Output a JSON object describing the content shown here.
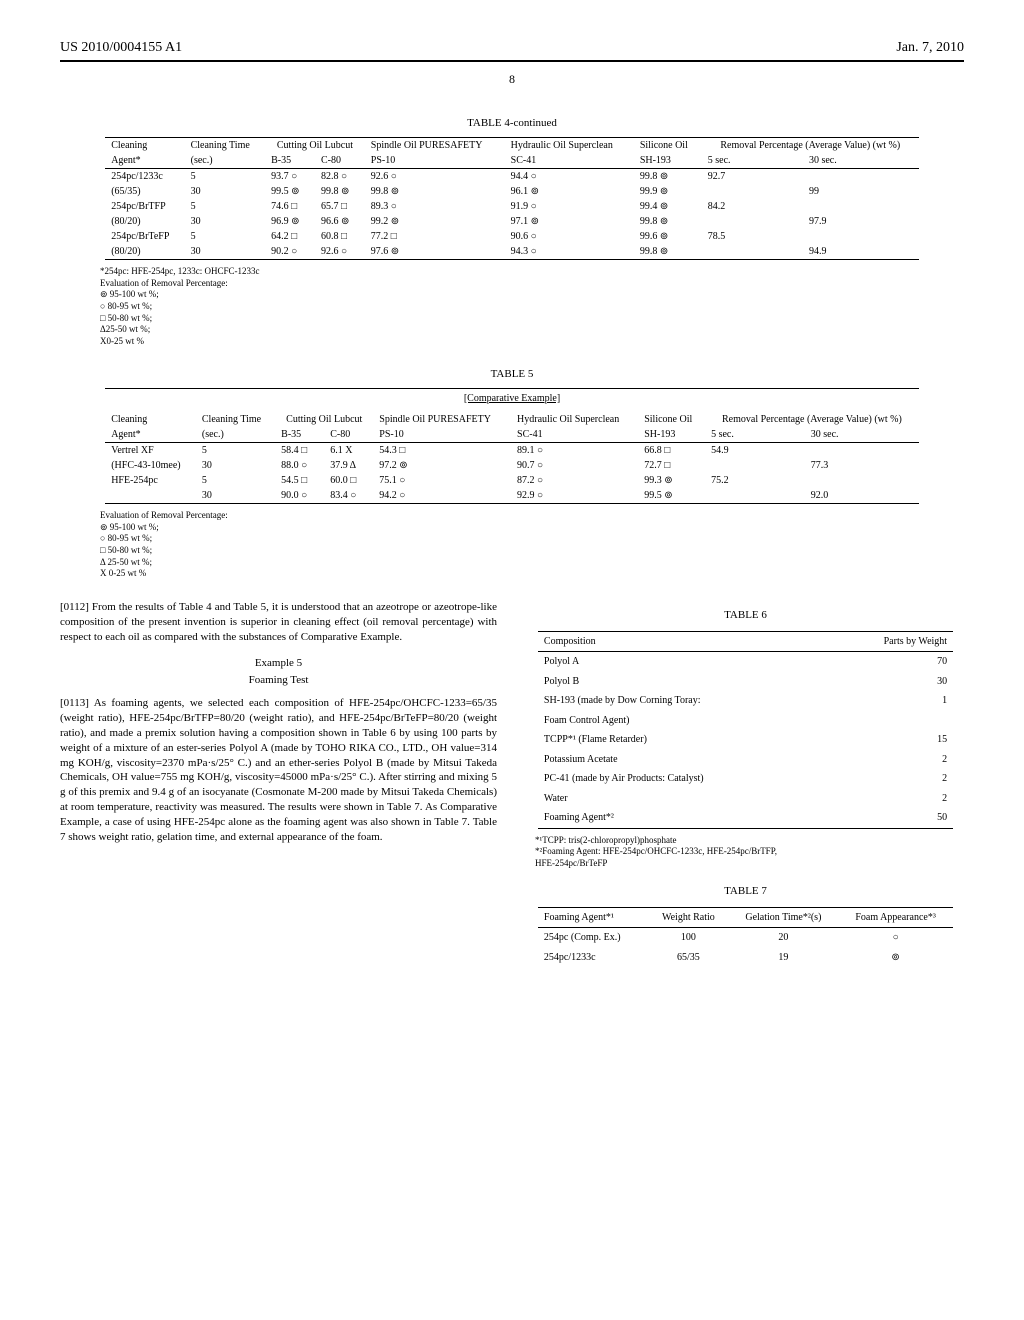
{
  "header": {
    "left": "US 2010/0004155 A1",
    "right": "Jan. 7, 2010"
  },
  "page_number": "8",
  "table4": {
    "title": "TABLE 4-continued",
    "head1": {
      "cleaning": "Cleaning",
      "cleaning_time": "Cleaning Time",
      "cutting_oil": "Cutting Oil Lubcut",
      "spindle_oil": "Spindle Oil PURESAFETY",
      "hydraulic_oil": "Hydraulic Oil Superclean",
      "silicone_oil": "Silicone Oil",
      "removal": "Removal Percentage (Average Value) (wt %)"
    },
    "head2": {
      "agent": "Agent*",
      "sec": "(sec.)",
      "b35": "B-35",
      "c80": "C-80",
      "ps10": "PS-10",
      "sc41": "SC-41",
      "sh193": "SH-193",
      "s5": "5 sec.",
      "s30": "30 sec."
    },
    "rows": [
      {
        "agent": "254pc/1233c",
        "sec": "5",
        "b35": "93.7 ○",
        "c80": "82.8 ○",
        "ps10": "92.6 ○",
        "sc41": "94.4 ○",
        "sh193": "99.8 ⊚",
        "s5": "92.7",
        "s30": ""
      },
      {
        "agent": "(65/35)",
        "sec": "30",
        "b35": "99.5 ⊚",
        "c80": "99.8 ⊚",
        "ps10": "99.8 ⊚",
        "sc41": "96.1 ⊚",
        "sh193": "99.9 ⊚",
        "s5": "",
        "s30": "99"
      },
      {
        "agent": "254pc/BrTFP",
        "sec": "5",
        "b35": "74.6 □",
        "c80": "65.7 □",
        "ps10": "89.3 ○",
        "sc41": "91.9 ○",
        "sh193": "99.4 ⊚",
        "s5": "84.2",
        "s30": ""
      },
      {
        "agent": "(80/20)",
        "sec": "30",
        "b35": "96.9 ⊚",
        "c80": "96.6 ⊚",
        "ps10": "99.2 ⊚",
        "sc41": "97.1 ⊚",
        "sh193": "99.8 ⊚",
        "s5": "",
        "s30": "97.9"
      },
      {
        "agent": "254pc/BrTeFP",
        "sec": "5",
        "b35": "64.2 □",
        "c80": "60.8 □",
        "ps10": "77.2 □",
        "sc41": "90.6 ○",
        "sh193": "99.6 ⊚",
        "s5": "78.5",
        "s30": ""
      },
      {
        "agent": "(80/20)",
        "sec": "30",
        "b35": "90.2 ○",
        "c80": "92.6 ○",
        "ps10": "97.6 ⊚",
        "sc41": "94.3 ○",
        "sh193": "99.8 ⊚",
        "s5": "",
        "s30": "94.9"
      }
    ],
    "notes": [
      "*254pc: HFE-254pc, 1233c: OHCFC-1233c",
      "Evaluation of Removal Percentage:",
      "⊚ 95-100 wt %;",
      "○ 80-95 wt %;",
      "□ 50-80 wt %;",
      "Δ25-50 wt %;",
      "X0-25 wt %"
    ]
  },
  "table5": {
    "title": "TABLE 5",
    "subtitle": "[Comparative Example]",
    "rows": [
      {
        "agent": "Vertrel XF",
        "sec": "5",
        "b35": "58.4 □",
        "c80": "6.1 X",
        "ps10": "54.3 □",
        "sc41": "89.1 ○",
        "sh193": "66.8 □",
        "s5": "54.9",
        "s30": ""
      },
      {
        "agent": "(HFC-43-10mee)",
        "sec": "30",
        "b35": "88.0 ○",
        "c80": "37.9 Δ",
        "ps10": "97.2 ⊚",
        "sc41": "90.7 ○",
        "sh193": "72.7 □",
        "s5": "",
        "s30": "77.3"
      },
      {
        "agent": "HFE-254pc",
        "sec": "5",
        "b35": "54.5 □",
        "c80": "60.0 □",
        "ps10": "75.1 ○",
        "sc41": "87.2 ○",
        "sh193": "99.3 ⊚",
        "s5": "75.2",
        "s30": ""
      },
      {
        "agent": "",
        "sec": "30",
        "b35": "90.0 ○",
        "c80": "83.4 ○",
        "ps10": "94.2 ○",
        "sc41": "92.9 ○",
        "sh193": "99.5 ⊚",
        "s5": "",
        "s30": "92.0"
      }
    ],
    "notes": [
      "Evaluation of Removal Percentage:",
      "⊚ 95-100 wt %;",
      "○ 80-95 wt %;",
      "□ 50-80 wt %;",
      "Δ 25-50 wt %;",
      "X 0-25 wt %"
    ]
  },
  "body": {
    "para112": "[0112]   From the results of Table 4 and Table 5, it is understood that an azeotrope or azeotrope-like composition of the present invention is superior in cleaning effect (oil removal percentage) with respect to each oil as compared with the substances of Comparative Example.",
    "example5": "Example 5",
    "foaming": "Foaming Test",
    "para113": "[0113]   As foaming agents, we selected each composition of HFE-254pc/OHCFC-1233=65/35 (weight ratio), HFE-254pc/BrTFP=80/20 (weight ratio), and HFE-254pc/BrTeFP=80/20 (weight ratio), and made a premix solution having a composition shown in Table 6 by using 100 parts by weight of a mixture of an ester-series Polyol A (made by TOHO RIKA CO., LTD., OH value=314 mg KOH/g, viscosity=2370 mPa·s/25° C.) and an ether-series Polyol B (made by Mitsui Takeda Chemicals, OH value=755 mg KOH/g, viscosity=45000 mPa·s/25° C.). After stirring and mixing 5 g of this premix and 9.4 g of an isocyanate (Cosmonate M-200 made by Mitsui Takeda Chemicals) at room temperature, reactivity was measured. The results were shown in Table 7. As Comparative Example, a case of using HFE-254pc alone as the foaming agent was also shown in Table 7. Table 7 shows weight ratio, gelation time, and external appearance of the foam."
  },
  "table6": {
    "title": "TABLE 6",
    "head": {
      "composition": "Composition",
      "parts": "Parts by Weight"
    },
    "rows": [
      {
        "c": "Polyol A",
        "p": "70"
      },
      {
        "c": "Polyol B",
        "p": "30"
      },
      {
        "c": "SH-193 (made by Dow Corning Toray:",
        "p": "1"
      },
      {
        "c": "Foam Control Agent)",
        "p": ""
      },
      {
        "c": "TCPP*¹ (Flame Retarder)",
        "p": "15"
      },
      {
        "c": "Potassium Acetate",
        "p": "2"
      },
      {
        "c": "PC-41 (made by Air Products: Catalyst)",
        "p": "2"
      },
      {
        "c": "Water",
        "p": "2"
      },
      {
        "c": "Foaming Agent*²",
        "p": "50"
      }
    ],
    "notes": [
      "*¹TCPP: tris(2-chloropropyl)phosphate",
      "*²Foaming Agent: HFE-254pc/OHCFC-1233c, HFE-254pc/BrTFP,",
      "HFE-254pc/BrTeFP"
    ]
  },
  "table7": {
    "title": "TABLE 7",
    "head": {
      "agent": "Foaming Agent*¹",
      "ratio": "Weight Ratio",
      "gel": "Gelation Time*²(s)",
      "foam": "Foam Appearance*³"
    },
    "rows": [
      {
        "agent": "254pc (Comp. Ex.)",
        "ratio": "100",
        "gel": "20",
        "foam": "○"
      },
      {
        "agent": "254pc/1233c",
        "ratio": "65/35",
        "gel": "19",
        "foam": "⊚"
      }
    ]
  }
}
